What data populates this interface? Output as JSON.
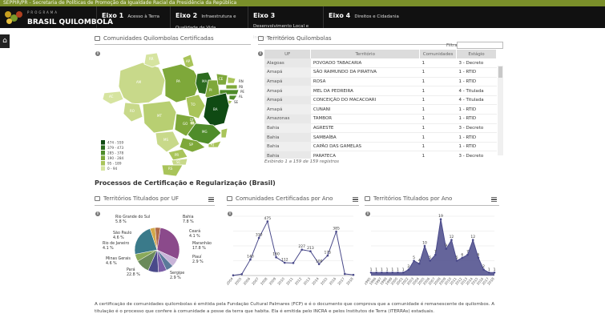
{
  "topbar": {
    "text": "SEPPIR/PR - Secretaria de Políticas de Promoção da Igualdade Racial da Presidência da República"
  },
  "brand": {
    "small": "PROGRAMA",
    "name": "BRASIL QUILOMBOLA"
  },
  "nav": [
    {
      "num": "Eixo 1",
      "label": "Acesso à Terra"
    },
    {
      "num": "Eixo 2",
      "label": "Infraestrutura e Qualidade de Vida"
    },
    {
      "num": "Eixo 3",
      "label": "Desenvolvimento Local e Inclusão Produtiva"
    },
    {
      "num": "Eixo 4",
      "label": "Direitos e Cidadania"
    }
  ],
  "map_panel": {
    "title": "Comunidades Quilombolas Certificadas",
    "legend": [
      "474 - 559",
      "379 - 473",
      "285 - 378",
      "190 - 284",
      "95 - 189",
      "0 - 94"
    ],
    "legend_colors": [
      "#0f4a13",
      "#2c6b1f",
      "#4f8c2a",
      "#7ea83a",
      "#a9c45a",
      "#d6e4a0"
    ],
    "states": [
      "RR",
      "AP",
      "AM",
      "PA",
      "MA",
      "CE",
      "RN",
      "PB",
      "PE",
      "AL",
      "SE",
      "BA",
      "PI",
      "TO",
      "RO",
      "MT",
      "GO",
      "DF",
      "MG",
      "ES",
      "RJ",
      "SP",
      "MS",
      "PR",
      "SC",
      "RS",
      "AC"
    ]
  },
  "table_panel": {
    "title": "Territórios Quilombolas",
    "filter_label": "Filtrar:",
    "headers": [
      "UF",
      "Território",
      "Comunidades",
      "Estágio"
    ],
    "rows": [
      [
        "Alagoas",
        "POVOADO TABACARIA",
        "1",
        "3 - Decreto"
      ],
      [
        "Amapá",
        "SÃO RAIMUNDO DA PIRATIVA",
        "1",
        "1 - RTID"
      ],
      [
        "Amapá",
        "ROSA",
        "1",
        "1 - RTID"
      ],
      [
        "Amapá",
        "MEL DA PEDREIRA",
        "1",
        "4 - Titulada"
      ],
      [
        "Amapá",
        "CONCEIÇÃO DO MACACOARI",
        "1",
        "4 - Titulada"
      ],
      [
        "Amapá",
        "CUNANI",
        "1",
        "1 - RTID"
      ],
      [
        "Amazonas",
        "TAMBOR",
        "1",
        "1 - RTID"
      ],
      [
        "Bahia",
        "AGRESTE",
        "1",
        "3 - Decreto"
      ],
      [
        "Bahia",
        "SAMBAÍBA",
        "1",
        "1 - RTID"
      ],
      [
        "Bahia",
        "CAPÃO DAS GAMELAS",
        "1",
        "1 - RTID"
      ],
      [
        "Bahia",
        "PARATECA",
        "1",
        "3 - Decreto"
      ]
    ],
    "info": "Exibindo 1 a 159 de 159 registros"
  },
  "section": {
    "title": "Processos de Certificação e Regularização (Brasil)"
  },
  "footer": {
    "text": "A certificação de comunidades quilombolas é emitida pela Fundação Cultural Palmares (FCP) e é o documento que comprova que a comunidade é remanescente de quilombos. A titulação é o processo que confere à comunidade a posse da terra que habita. Ela é emitida pelo INCRA e pelos Institutos de Terra (ITERRAs) estaduais."
  },
  "chart_data": [
    {
      "type": "pie",
      "title": "Territórios Titulados por UF",
      "slices": [
        {
          "label": "Pará",
          "value": 22.8,
          "color": "#8b4a8b"
        },
        {
          "label": "Minas Gerais",
          "value": 4.6,
          "color": "#c8b4d8"
        },
        {
          "label": "Rio de Janeiro",
          "value": 4.1,
          "color": "#5a7a9a"
        },
        {
          "label": "São Paulo",
          "value": 4.6,
          "color": "#7b5ea7"
        },
        {
          "label": "Rio Grande do Sul",
          "value": 5.8,
          "color": "#4a4a8a"
        },
        {
          "label": "Bahia",
          "value": 7.8,
          "color": "#6a8a5a"
        },
        {
          "label": "Ceará",
          "value": 4.1,
          "color": "#8aaa5a"
        },
        {
          "label": "Maranhão",
          "value": 17.8,
          "color": "#3a7a8a"
        },
        {
          "label": "Piauí",
          "value": 2.9,
          "color": "#d4a84a"
        },
        {
          "label": "Sergipe",
          "value": 2.9,
          "color": "#b06a4a"
        }
      ],
      "labels_shown": [
        {
          "label": "Rio Grande do Sul",
          "pct": "5.8 %"
        },
        {
          "label": "São Paulo",
          "pct": "4.6 %"
        },
        {
          "label": "Rio de Janeiro",
          "pct": "4.1 %"
        },
        {
          "label": "Minas Gerais",
          "pct": "4.6 %"
        },
        {
          "label": "Pará",
          "pct": "22.8 %"
        },
        {
          "label": "Bahia",
          "pct": "7.8 %"
        },
        {
          "label": "Ceará",
          "pct": "4.1 %"
        },
        {
          "label": "Maranhão",
          "pct": "17.8 %"
        },
        {
          "label": "Piauí",
          "pct": "2.9 %"
        },
        {
          "label": "Sergipe",
          "pct": "2.9 %"
        }
      ]
    },
    {
      "type": "line",
      "title": "Comunidades Certificadas por Ano",
      "x": [
        "2004",
        "2005",
        "2006",
        "2007",
        "2008",
        "2009",
        "2010",
        "2011",
        "2012",
        "2013",
        "2014",
        "2015",
        "2016",
        "2017",
        "2018"
      ],
      "values": [
        2,
        12,
        140,
        330,
        475,
        160,
        112,
        110,
        227,
        213,
        100,
        175,
        385,
        14,
        6
      ],
      "labeled": [
        null,
        null,
        140,
        330,
        475,
        160,
        112,
        null,
        227,
        213,
        100,
        175,
        385,
        null,
        null
      ],
      "ylim": [
        0,
        520
      ],
      "color": "#4a4a8a"
    },
    {
      "type": "area",
      "title": "Territórios Titulados por Ano",
      "x": [
        "1995",
        "1996",
        "1997",
        "1998",
        "1999",
        "2000",
        "2001",
        "2002",
        "2003",
        "2004",
        "2005",
        "2006",
        "2007",
        "2008",
        "2009",
        "2010",
        "2011",
        "2012",
        "2013",
        "2014",
        "2015",
        "2016",
        "2017",
        "2018"
      ],
      "values": [
        1,
        1,
        1,
        1,
        1,
        1,
        1,
        2,
        5,
        4,
        10,
        5,
        7,
        19,
        9,
        12,
        5,
        6,
        7,
        12,
        6,
        2,
        1,
        1
      ],
      "labeled": [
        1,
        1,
        1,
        1,
        1,
        1,
        1,
        2,
        5,
        4,
        10,
        5,
        7,
        19,
        9,
        12,
        5,
        6,
        7,
        12,
        6,
        2,
        1,
        1
      ],
      "ylim": [
        0,
        20
      ],
      "color": "#4a4a8a"
    }
  ]
}
